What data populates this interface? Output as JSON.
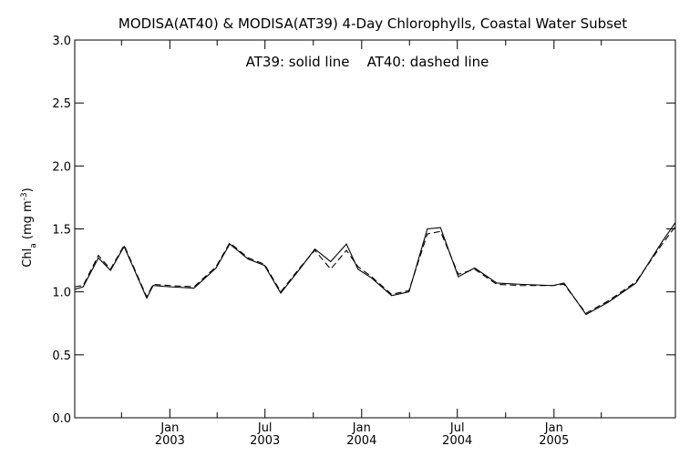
{
  "chart_data": {
    "type": "line",
    "title": "MODISA(AT40) & MODISA(AT39) 4-Day Chlorophylls, Coastal Water Subset",
    "annotation": "AT39: solid line    AT40: dashed line",
    "ylabel": "Chl_a (mg m^-3)",
    "ylabel_parts": {
      "base": "Chl",
      "sub": "a",
      "unit_open": " (mg m",
      "sup": "-3",
      "unit_close": ")"
    },
    "xlabel": "",
    "ylim": [
      0.0,
      3.0
    ],
    "xlim": [
      "2002-07-04",
      "2005-08-20"
    ],
    "y_ticks": [
      {
        "value": 0.0,
        "label": "0.0"
      },
      {
        "value": 0.5,
        "label": "0.5"
      },
      {
        "value": 1.0,
        "label": "1.0"
      },
      {
        "value": 1.5,
        "label": "1.5"
      },
      {
        "value": 2.0,
        "label": "2.0"
      },
      {
        "value": 2.5,
        "label": "2.5"
      },
      {
        "value": 3.0,
        "label": "3.0"
      }
    ],
    "x_ticks": [
      {
        "date": "2003-01-01",
        "month": "Jan",
        "year": "2003"
      },
      {
        "date": "2003-07-01",
        "month": "Jul",
        "year": "2003"
      },
      {
        "date": "2004-01-01",
        "month": "Jan",
        "year": "2004"
      },
      {
        "date": "2004-07-01",
        "month": "Jul",
        "year": "2004"
      },
      {
        "date": "2005-01-01",
        "month": "Jan",
        "year": "2005"
      }
    ],
    "x_minor_ticks": [
      "2002-10-01",
      "2003-04-01",
      "2003-10-01",
      "2004-04-01",
      "2004-10-01",
      "2005-04-01"
    ],
    "grid": false,
    "series": [
      {
        "name": "AT39",
        "style": "solid",
        "color": "#000000",
        "points": [
          {
            "x": "2002-07-04",
            "y": 1.02
          },
          {
            "x": "2002-07-20",
            "y": 1.04
          },
          {
            "x": "2002-08-18",
            "y": 1.27
          },
          {
            "x": "2002-09-10",
            "y": 1.17
          },
          {
            "x": "2002-10-06",
            "y": 1.36
          },
          {
            "x": "2002-11-18",
            "y": 0.95
          },
          {
            "x": "2002-11-30",
            "y": 1.05
          },
          {
            "x": "2003-01-01",
            "y": 1.04
          },
          {
            "x": "2003-02-16",
            "y": 1.03
          },
          {
            "x": "2003-03-30",
            "y": 1.19
          },
          {
            "x": "2003-04-25",
            "y": 1.38
          },
          {
            "x": "2003-05-30",
            "y": 1.26
          },
          {
            "x": "2003-06-30",
            "y": 1.21
          },
          {
            "x": "2003-07-31",
            "y": 0.99
          },
          {
            "x": "2003-09-05",
            "y": 1.18
          },
          {
            "x": "2003-10-04",
            "y": 1.34
          },
          {
            "x": "2003-11-03",
            "y": 1.24
          },
          {
            "x": "2003-12-03",
            "y": 1.38
          },
          {
            "x": "2003-12-25",
            "y": 1.18
          },
          {
            "x": "2004-01-20",
            "y": 1.11
          },
          {
            "x": "2004-02-27",
            "y": 0.97
          },
          {
            "x": "2004-03-31",
            "y": 1.0
          },
          {
            "x": "2004-05-05",
            "y": 1.5
          },
          {
            "x": "2004-05-30",
            "y": 1.51
          },
          {
            "x": "2004-07-03",
            "y": 1.12
          },
          {
            "x": "2004-08-03",
            "y": 1.19
          },
          {
            "x": "2004-09-14",
            "y": 1.07
          },
          {
            "x": "2004-10-30",
            "y": 1.06
          },
          {
            "x": "2004-12-30",
            "y": 1.05
          },
          {
            "x": "2005-01-20",
            "y": 1.07
          },
          {
            "x": "2005-03-03",
            "y": 0.82
          },
          {
            "x": "2005-04-15",
            "y": 0.92
          },
          {
            "x": "2005-06-06",
            "y": 1.07
          },
          {
            "x": "2005-07-26",
            "y": 1.4
          },
          {
            "x": "2005-08-20",
            "y": 1.55
          }
        ]
      },
      {
        "name": "AT40",
        "style": "dashed",
        "color": "#000000",
        "points": [
          {
            "x": "2002-07-04",
            "y": 1.04
          },
          {
            "x": "2002-07-20",
            "y": 1.05
          },
          {
            "x": "2002-08-18",
            "y": 1.29
          },
          {
            "x": "2002-09-10",
            "y": 1.18
          },
          {
            "x": "2002-10-06",
            "y": 1.37
          },
          {
            "x": "2002-11-18",
            "y": 0.96
          },
          {
            "x": "2002-11-30",
            "y": 1.06
          },
          {
            "x": "2003-01-01",
            "y": 1.05
          },
          {
            "x": "2003-02-16",
            "y": 1.04
          },
          {
            "x": "2003-03-30",
            "y": 1.2
          },
          {
            "x": "2003-04-25",
            "y": 1.39
          },
          {
            "x": "2003-05-30",
            "y": 1.27
          },
          {
            "x": "2003-06-30",
            "y": 1.22
          },
          {
            "x": "2003-07-31",
            "y": 1.0
          },
          {
            "x": "2003-09-05",
            "y": 1.19
          },
          {
            "x": "2003-10-04",
            "y": 1.33
          },
          {
            "x": "2003-11-03",
            "y": 1.18
          },
          {
            "x": "2003-12-03",
            "y": 1.33
          },
          {
            "x": "2003-12-25",
            "y": 1.2
          },
          {
            "x": "2004-01-20",
            "y": 1.12
          },
          {
            "x": "2004-02-27",
            "y": 0.98
          },
          {
            "x": "2004-03-31",
            "y": 1.01
          },
          {
            "x": "2004-05-05",
            "y": 1.46
          },
          {
            "x": "2004-05-30",
            "y": 1.48
          },
          {
            "x": "2004-07-03",
            "y": 1.14
          },
          {
            "x": "2004-08-03",
            "y": 1.18
          },
          {
            "x": "2004-09-14",
            "y": 1.06
          },
          {
            "x": "2004-10-30",
            "y": 1.05
          },
          {
            "x": "2004-12-30",
            "y": 1.05
          },
          {
            "x": "2005-01-20",
            "y": 1.06
          },
          {
            "x": "2005-03-03",
            "y": 0.83
          },
          {
            "x": "2005-04-15",
            "y": 0.93
          },
          {
            "x": "2005-06-06",
            "y": 1.08
          },
          {
            "x": "2005-07-26",
            "y": 1.38
          },
          {
            "x": "2005-08-20",
            "y": 1.52
          }
        ]
      }
    ]
  }
}
